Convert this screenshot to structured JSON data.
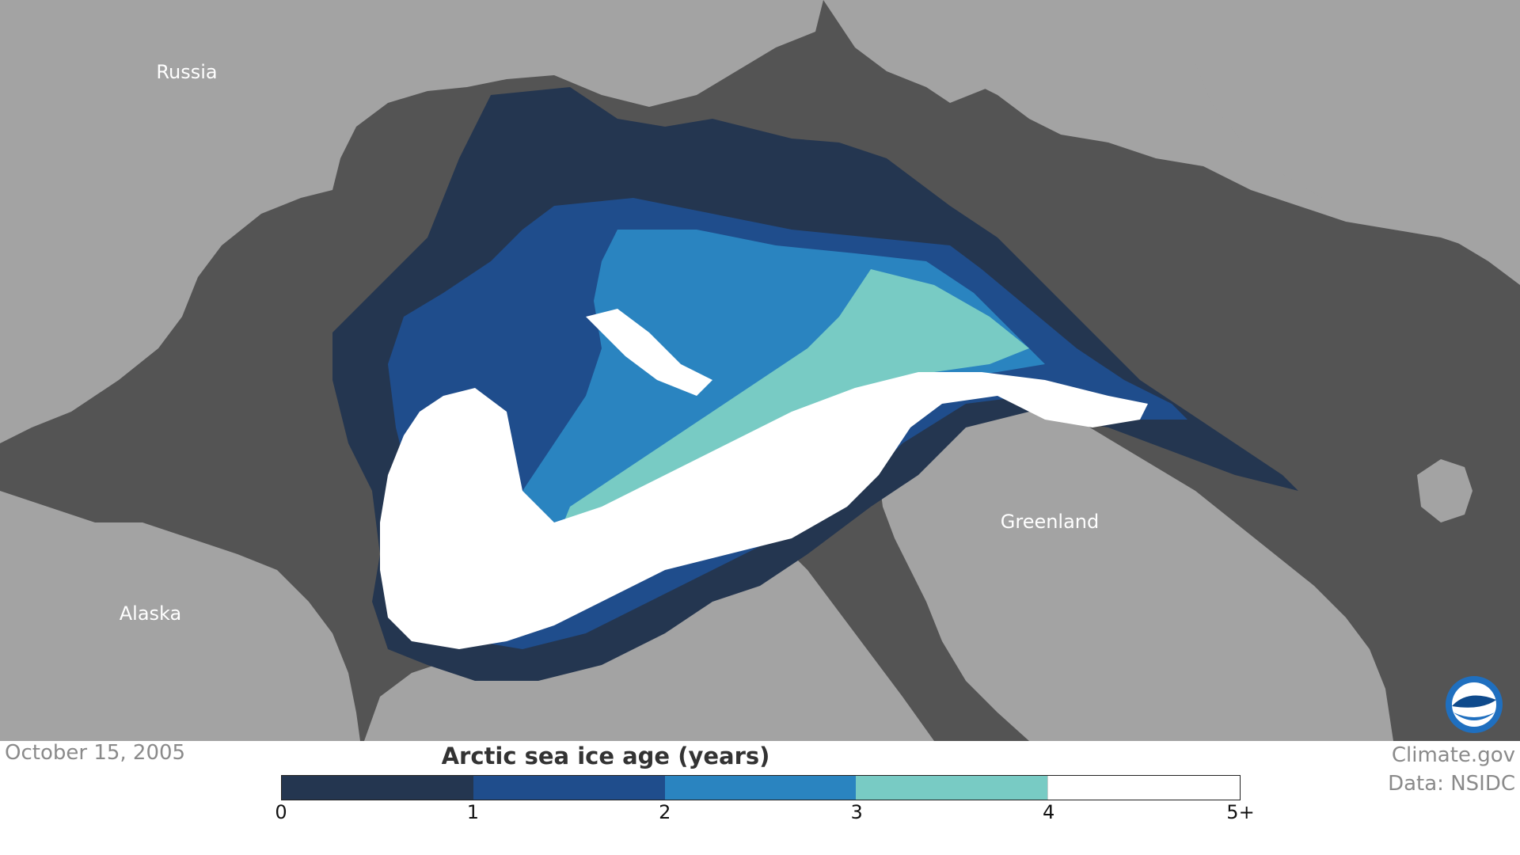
{
  "map": {
    "ocean_color": "#545454",
    "land_color": "#a3a3a3",
    "labels": {
      "russia": "Russia",
      "alaska": "Alaska",
      "greenland": "Greenland"
    },
    "logo_icon": "noaa-logo"
  },
  "footer": {
    "date": "October 15, 2005",
    "credit_line1": "Climate.gov",
    "credit_line2": "Data: NSIDC"
  },
  "legend": {
    "title": "Arctic sea ice age (years)",
    "classes": [
      {
        "from": "0",
        "to": "1",
        "color": "#243650"
      },
      {
        "from": "1",
        "to": "2",
        "color": "#1f4d8c"
      },
      {
        "from": "2",
        "to": "3",
        "color": "#2a84c0"
      },
      {
        "from": "3",
        "to": "4",
        "color": "#78cbc4"
      },
      {
        "from": "4",
        "to": "5+",
        "color": "#ffffff"
      }
    ],
    "ticks": [
      "0",
      "1",
      "2",
      "3",
      "4",
      "5+"
    ]
  }
}
